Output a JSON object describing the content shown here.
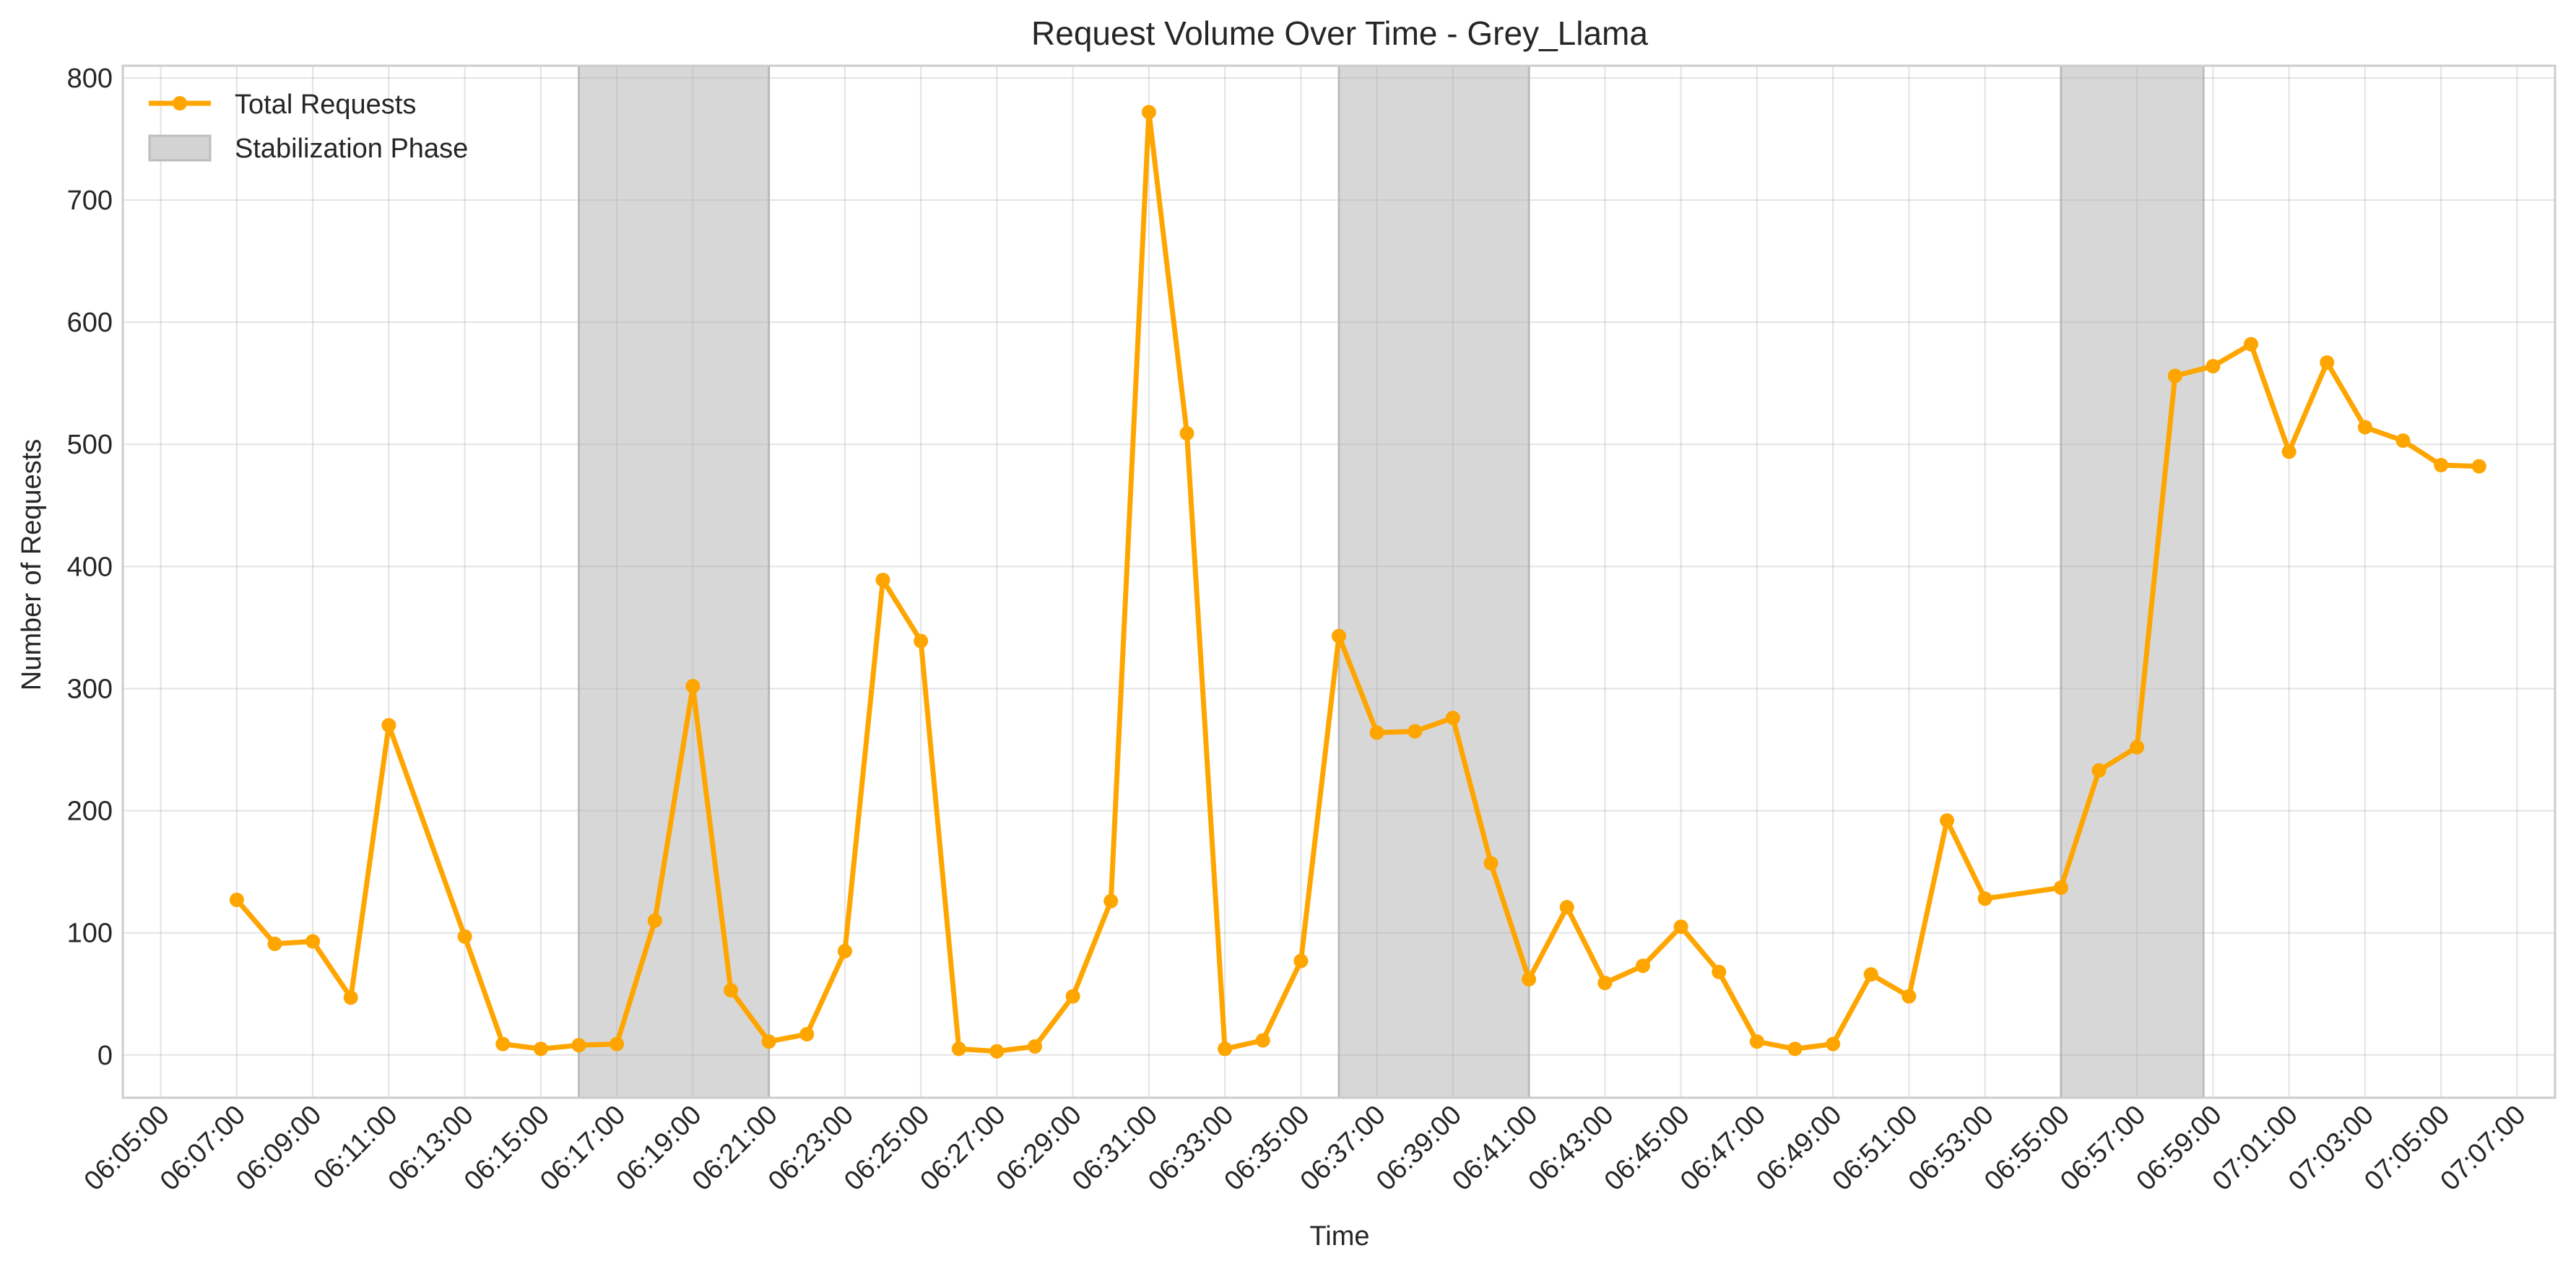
{
  "chart_data": {
    "type": "line",
    "title": "Request Volume Over Time - Grey_Llama",
    "xlabel": "Time",
    "ylabel": "Number of Requests",
    "ylim": [
      -35,
      810
    ],
    "xlim": [
      "06:04:00",
      "07:08:00"
    ],
    "y_ticks": [
      0,
      100,
      200,
      300,
      400,
      500,
      600,
      700,
      800
    ],
    "x_ticks": [
      "06:05:00",
      "06:07:00",
      "06:09:00",
      "06:11:00",
      "06:13:00",
      "06:15:00",
      "06:17:00",
      "06:19:00",
      "06:21:00",
      "06:23:00",
      "06:25:00",
      "06:27:00",
      "06:29:00",
      "06:31:00",
      "06:33:00",
      "06:35:00",
      "06:37:00",
      "06:39:00",
      "06:41:00",
      "06:43:00",
      "06:45:00",
      "06:47:00",
      "06:49:00",
      "06:51:00",
      "06:53:00",
      "06:55:00",
      "06:57:00",
      "06:59:00",
      "07:01:00",
      "07:03:00",
      "07:05:00",
      "07:07:00"
    ],
    "grid": true,
    "legend_position": "top-left",
    "series": [
      {
        "name": "Total Requests",
        "color": "#FFA500",
        "points": [
          {
            "x": "06:07:00",
            "y": 127
          },
          {
            "x": "06:08:00",
            "y": 91
          },
          {
            "x": "06:09:00",
            "y": 93
          },
          {
            "x": "06:10:00",
            "y": 47
          },
          {
            "x": "06:11:00",
            "y": 270
          },
          {
            "x": "06:13:00",
            "y": 97
          },
          {
            "x": "06:14:00",
            "y": 9
          },
          {
            "x": "06:15:00",
            "y": 5
          },
          {
            "x": "06:16:00",
            "y": 8
          },
          {
            "x": "06:17:00",
            "y": 9
          },
          {
            "x": "06:18:00",
            "y": 110
          },
          {
            "x": "06:19:00",
            "y": 302
          },
          {
            "x": "06:20:00",
            "y": 53
          },
          {
            "x": "06:21:00",
            "y": 11
          },
          {
            "x": "06:22:00",
            "y": 17
          },
          {
            "x": "06:23:00",
            "y": 85
          },
          {
            "x": "06:24:00",
            "y": 389
          },
          {
            "x": "06:25:00",
            "y": 339
          },
          {
            "x": "06:26:00",
            "y": 5
          },
          {
            "x": "06:27:00",
            "y": 3
          },
          {
            "x": "06:28:00",
            "y": 7
          },
          {
            "x": "06:29:00",
            "y": 48
          },
          {
            "x": "06:30:00",
            "y": 126
          },
          {
            "x": "06:31:00",
            "y": 772
          },
          {
            "x": "06:32:00",
            "y": 509
          },
          {
            "x": "06:33:00",
            "y": 5
          },
          {
            "x": "06:34:00",
            "y": 12
          },
          {
            "x": "06:35:00",
            "y": 77
          },
          {
            "x": "06:36:00",
            "y": 343
          },
          {
            "x": "06:37:00",
            "y": 264
          },
          {
            "x": "06:38:00",
            "y": 265
          },
          {
            "x": "06:39:00",
            "y": 276
          },
          {
            "x": "06:40:00",
            "y": 157
          },
          {
            "x": "06:41:00",
            "y": 62
          },
          {
            "x": "06:42:00",
            "y": 121
          },
          {
            "x": "06:43:00",
            "y": 59
          },
          {
            "x": "06:44:00",
            "y": 73
          },
          {
            "x": "06:45:00",
            "y": 105
          },
          {
            "x": "06:46:00",
            "y": 68
          },
          {
            "x": "06:47:00",
            "y": 11
          },
          {
            "x": "06:48:00",
            "y": 5
          },
          {
            "x": "06:49:00",
            "y": 9
          },
          {
            "x": "06:50:00",
            "y": 66
          },
          {
            "x": "06:51:00",
            "y": 48
          },
          {
            "x": "06:52:00",
            "y": 192
          },
          {
            "x": "06:53:00",
            "y": 128
          },
          {
            "x": "06:55:00",
            "y": 137
          },
          {
            "x": "06:56:00",
            "y": 233
          },
          {
            "x": "06:57:00",
            "y": 252
          },
          {
            "x": "06:58:00",
            "y": 556
          },
          {
            "x": "06:59:00",
            "y": 564
          },
          {
            "x": "07:00:00",
            "y": 582
          },
          {
            "x": "07:01:00",
            "y": 494
          },
          {
            "x": "07:02:00",
            "y": 567
          },
          {
            "x": "07:03:00",
            "y": 514
          },
          {
            "x": "07:04:00",
            "y": 503
          },
          {
            "x": "07:05:00",
            "y": 483
          },
          {
            "x": "07:06:00",
            "y": 482
          }
        ]
      }
    ],
    "shaded_regions": {
      "name": "Stabilization Phase",
      "color": "#D3D3D3",
      "spans": [
        {
          "start": "06:16:00",
          "end": "06:21:00"
        },
        {
          "start": "06:36:00",
          "end": "06:41:00"
        },
        {
          "start": "06:55:00",
          "end": "06:58:45"
        }
      ]
    }
  }
}
